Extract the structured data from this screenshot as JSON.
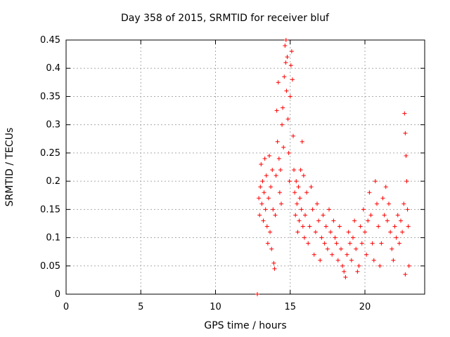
{
  "chart_data": {
    "type": "scatter",
    "title": "Day 358 of 2015, SRMTID for receiver bluf",
    "xlabel": "GPS time / hours",
    "ylabel": "SRMTID / TECUs",
    "xlim": [
      0,
      24
    ],
    "ylim": [
      0,
      0.45
    ],
    "xticks": [
      0,
      5,
      10,
      15,
      20
    ],
    "yticks": [
      0,
      0.05,
      0.1,
      0.15,
      0.2,
      0.25,
      0.3,
      0.35,
      0.4,
      0.45
    ],
    "ytick_labels": [
      "0",
      "0.05",
      "0.1",
      "0.15",
      "0.2",
      "0.25",
      "0.3",
      "0.35",
      "0.4",
      "0.45"
    ],
    "grid": true,
    "marker": "+",
    "color": "#ff0000",
    "series": [
      {
        "name": "SRMTID",
        "points": [
          [
            12.8,
            0.0
          ],
          [
            12.9,
            0.17
          ],
          [
            12.95,
            0.14
          ],
          [
            13.0,
            0.19
          ],
          [
            13.05,
            0.23
          ],
          [
            13.1,
            0.16
          ],
          [
            13.15,
            0.2
          ],
          [
            13.2,
            0.13
          ],
          [
            13.25,
            0.18
          ],
          [
            13.3,
            0.24
          ],
          [
            13.35,
            0.15
          ],
          [
            13.4,
            0.21
          ],
          [
            13.45,
            0.12
          ],
          [
            13.5,
            0.09
          ],
          [
            13.55,
            0.17
          ],
          [
            13.6,
            0.245
          ],
          [
            13.65,
            0.11
          ],
          [
            13.7,
            0.19
          ],
          [
            13.75,
            0.08
          ],
          [
            13.8,
            0.22
          ],
          [
            13.85,
            0.15
          ],
          [
            13.9,
            0.055
          ],
          [
            13.95,
            0.045
          ],
          [
            14.0,
            0.14
          ],
          [
            14.05,
            0.21
          ],
          [
            14.1,
            0.325
          ],
          [
            14.15,
            0.27
          ],
          [
            14.2,
            0.375
          ],
          [
            14.25,
            0.24
          ],
          [
            14.3,
            0.18
          ],
          [
            14.35,
            0.22
          ],
          [
            14.4,
            0.16
          ],
          [
            14.45,
            0.3
          ],
          [
            14.5,
            0.33
          ],
          [
            14.55,
            0.26
          ],
          [
            14.6,
            0.385
          ],
          [
            14.65,
            0.44
          ],
          [
            14.7,
            0.41
          ],
          [
            14.72,
            0.45
          ],
          [
            14.75,
            0.36
          ],
          [
            14.8,
            0.42
          ],
          [
            14.85,
            0.31
          ],
          [
            14.9,
            0.25
          ],
          [
            14.95,
            0.2
          ],
          [
            15.0,
            0.35
          ],
          [
            15.05,
            0.405
          ],
          [
            15.1,
            0.43
          ],
          [
            15.15,
            0.38
          ],
          [
            15.2,
            0.28
          ],
          [
            15.25,
            0.22
          ],
          [
            15.3,
            0.18
          ],
          [
            15.35,
            0.14
          ],
          [
            15.4,
            0.2
          ],
          [
            15.45,
            0.16
          ],
          [
            15.5,
            0.11
          ],
          [
            15.55,
            0.19
          ],
          [
            15.6,
            0.13
          ],
          [
            15.65,
            0.17
          ],
          [
            15.7,
            0.22
          ],
          [
            15.75,
            0.15
          ],
          [
            15.8,
            0.27
          ],
          [
            15.85,
            0.12
          ],
          [
            15.9,
            0.21
          ],
          [
            15.95,
            0.1
          ],
          [
            16.0,
            0.14
          ],
          [
            16.1,
            0.18
          ],
          [
            16.2,
            0.09
          ],
          [
            16.3,
            0.12
          ],
          [
            16.4,
            0.19
          ],
          [
            16.5,
            0.15
          ],
          [
            16.6,
            0.07
          ],
          [
            16.7,
            0.11
          ],
          [
            16.8,
            0.16
          ],
          [
            16.9,
            0.13
          ],
          [
            17.0,
            0.06
          ],
          [
            17.1,
            0.1
          ],
          [
            17.2,
            0.14
          ],
          [
            17.3,
            0.09
          ],
          [
            17.4,
            0.12
          ],
          [
            17.5,
            0.08
          ],
          [
            17.6,
            0.15
          ],
          [
            17.7,
            0.11
          ],
          [
            17.8,
            0.07
          ],
          [
            17.9,
            0.13
          ],
          [
            18.0,
            0.1
          ],
          [
            18.1,
            0.09
          ],
          [
            18.2,
            0.06
          ],
          [
            18.3,
            0.12
          ],
          [
            18.4,
            0.08
          ],
          [
            18.5,
            0.05
          ],
          [
            18.6,
            0.04
          ],
          [
            18.7,
            0.03
          ],
          [
            18.8,
            0.07
          ],
          [
            18.9,
            0.11
          ],
          [
            19.0,
            0.09
          ],
          [
            19.1,
            0.06
          ],
          [
            19.2,
            0.1
          ],
          [
            19.3,
            0.13
          ],
          [
            19.4,
            0.08
          ],
          [
            19.5,
            0.04
          ],
          [
            19.6,
            0.05
          ],
          [
            19.7,
            0.12
          ],
          [
            19.8,
            0.09
          ],
          [
            19.9,
            0.15
          ],
          [
            20.0,
            0.11
          ],
          [
            20.1,
            0.07
          ],
          [
            20.2,
            0.13
          ],
          [
            20.3,
            0.18
          ],
          [
            20.4,
            0.14
          ],
          [
            20.5,
            0.09
          ],
          [
            20.6,
            0.06
          ],
          [
            20.7,
            0.2
          ],
          [
            20.8,
            0.16
          ],
          [
            20.9,
            0.12
          ],
          [
            21.0,
            0.05
          ],
          [
            21.1,
            0.09
          ],
          [
            21.2,
            0.17
          ],
          [
            21.3,
            0.14
          ],
          [
            21.4,
            0.19
          ],
          [
            21.5,
            0.13
          ],
          [
            21.6,
            0.16
          ],
          [
            21.7,
            0.11
          ],
          [
            21.8,
            0.08
          ],
          [
            21.9,
            0.06
          ],
          [
            22.0,
            0.12
          ],
          [
            22.1,
            0.1
          ],
          [
            22.2,
            0.14
          ],
          [
            22.3,
            0.09
          ],
          [
            22.4,
            0.13
          ],
          [
            22.5,
            0.11
          ],
          [
            22.6,
            0.16
          ],
          [
            22.65,
            0.32
          ],
          [
            22.7,
            0.285
          ],
          [
            22.75,
            0.245
          ],
          [
            22.8,
            0.2
          ],
          [
            22.85,
            0.15
          ],
          [
            22.9,
            0.12
          ],
          [
            22.95,
            0.05
          ],
          [
            22.7,
            0.035
          ]
        ]
      }
    ]
  }
}
